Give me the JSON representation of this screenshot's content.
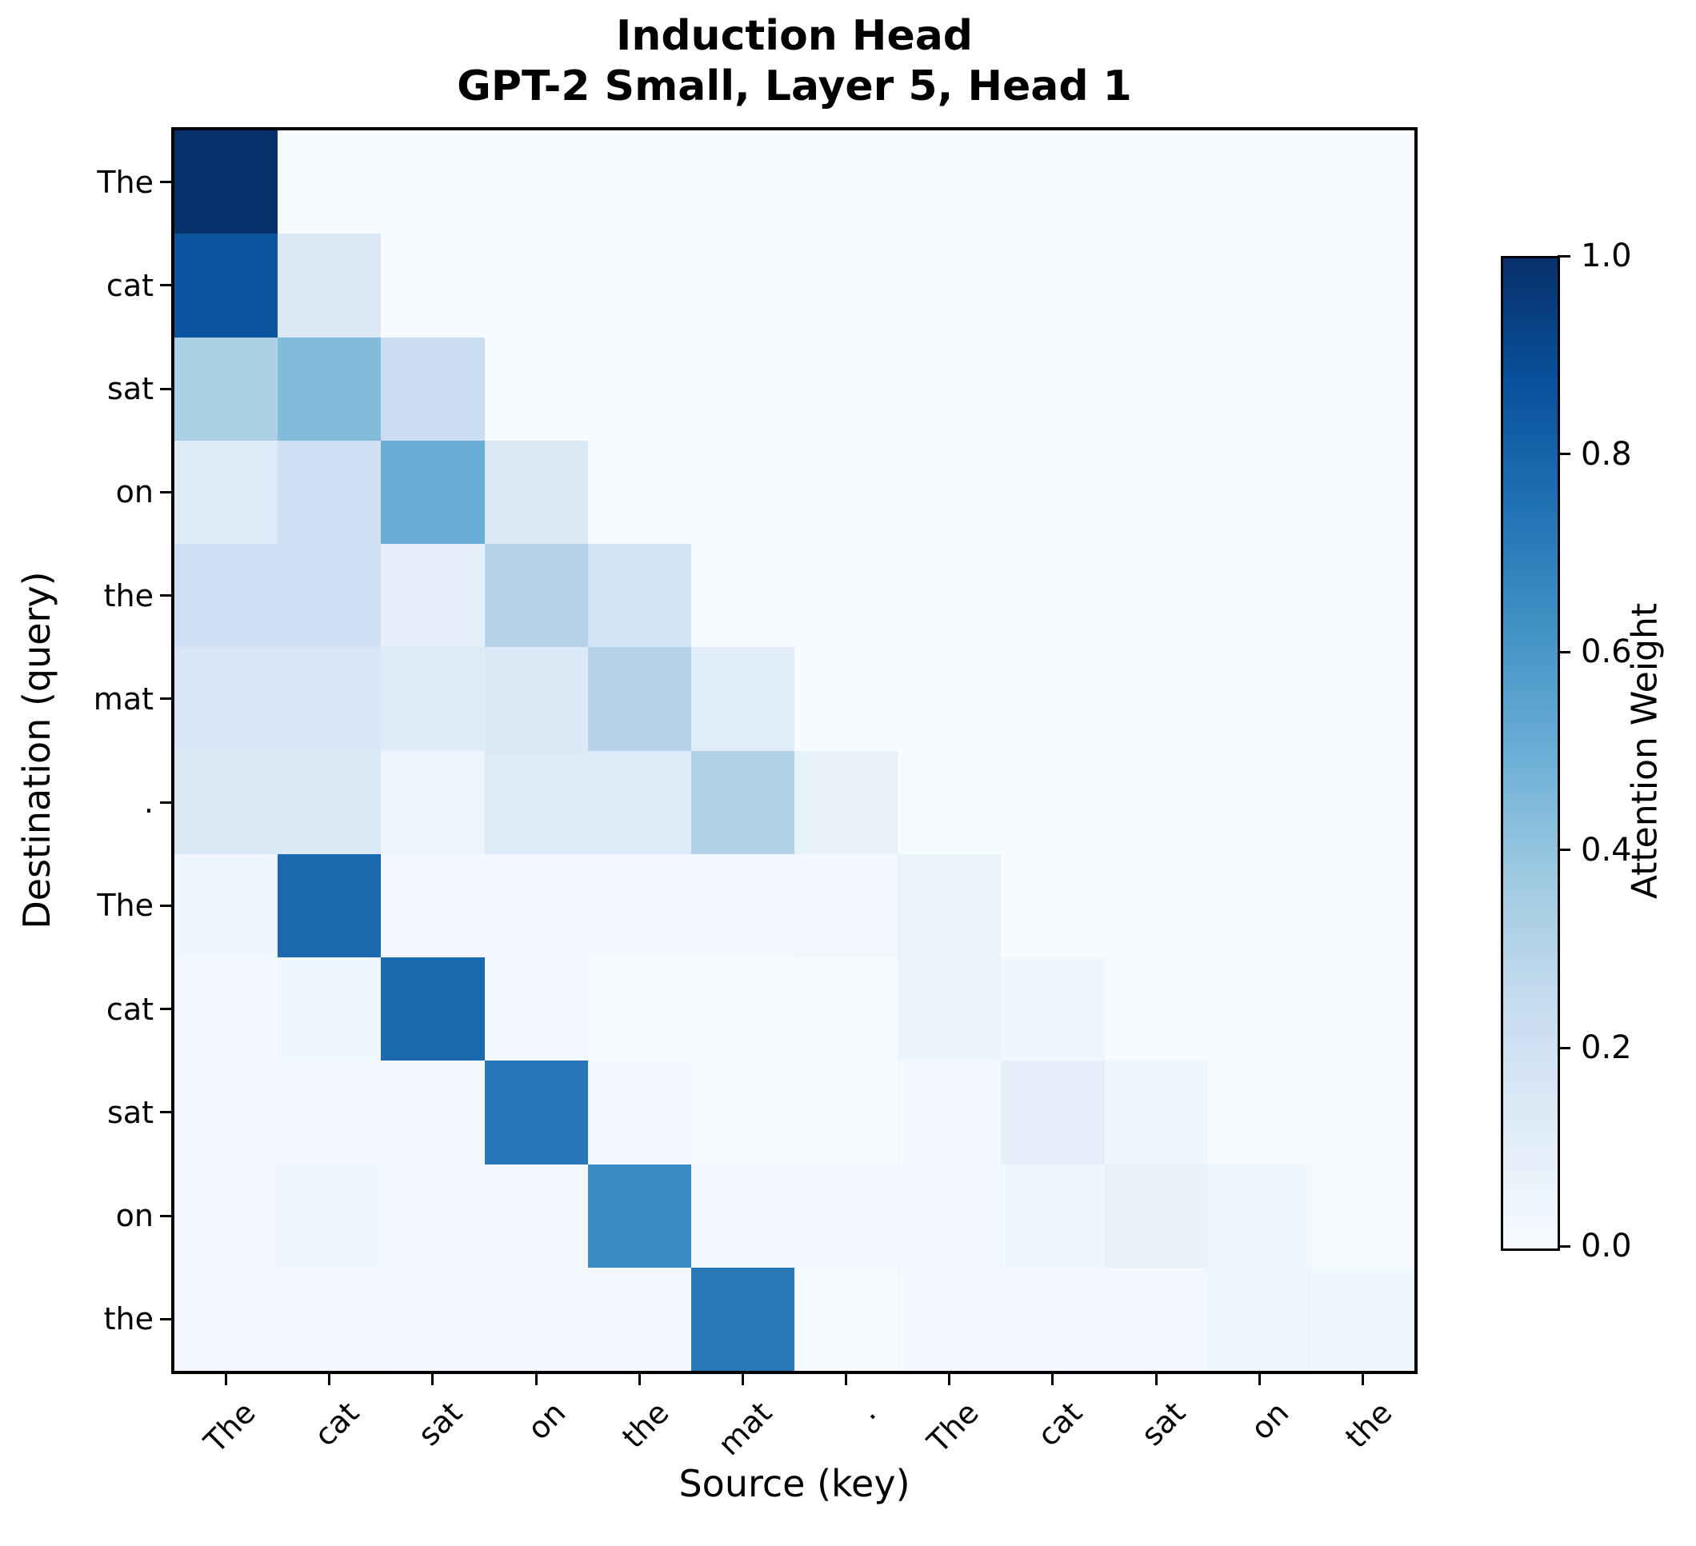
{
  "chart_data": {
    "type": "heatmap",
    "title": "Induction Head",
    "subtitle": "GPT-2 Small, Layer 5, Head 1",
    "xlabel": "Source (key)",
    "ylabel": "Destination (query)",
    "x_tokens": [
      "The",
      "cat",
      "sat",
      "on",
      "the",
      "mat",
      ".",
      "The",
      "cat",
      "sat",
      "on",
      "the"
    ],
    "y_tokens": [
      "The",
      "cat",
      "sat",
      "on",
      "the",
      "mat",
      ".",
      "The",
      "cat",
      "sat",
      "on",
      "the"
    ],
    "matrix": [
      [
        1.0,
        0,
        0,
        0,
        0,
        0,
        0,
        0,
        0,
        0,
        0,
        0
      ],
      [
        0.86,
        0.14,
        0,
        0,
        0,
        0,
        0,
        0,
        0,
        0,
        0,
        0
      ],
      [
        0.33,
        0.44,
        0.23,
        0,
        0,
        0,
        0,
        0,
        0,
        0,
        0,
        0
      ],
      [
        0.13,
        0.21,
        0.51,
        0.15,
        0,
        0,
        0,
        0,
        0,
        0,
        0,
        0
      ],
      [
        0.21,
        0.21,
        0.09,
        0.3,
        0.19,
        0,
        0,
        0,
        0,
        0,
        0,
        0
      ],
      [
        0.16,
        0.16,
        0.13,
        0.14,
        0.3,
        0.11,
        0,
        0,
        0,
        0,
        0,
        0
      ],
      [
        0.14,
        0.15,
        0.05,
        0.13,
        0.13,
        0.32,
        0.08,
        0,
        0,
        0,
        0,
        0
      ],
      [
        0.04,
        0.78,
        0.03,
        0.02,
        0.02,
        0.02,
        0.03,
        0.06,
        0,
        0,
        0,
        0
      ],
      [
        0.02,
        0.04,
        0.78,
        0.02,
        0.01,
        0.01,
        0.01,
        0.06,
        0.04,
        0,
        0,
        0
      ],
      [
        0.02,
        0.02,
        0.02,
        0.73,
        0.03,
        0.01,
        0.01,
        0.02,
        0.09,
        0.04,
        0,
        0
      ],
      [
        0.03,
        0.04,
        0.03,
        0.03,
        0.65,
        0.02,
        0.02,
        0.02,
        0.04,
        0.08,
        0.04,
        0
      ],
      [
        0.03,
        0.03,
        0.02,
        0.02,
        0.02,
        0.72,
        0.01,
        0.02,
        0.02,
        0.02,
        0.05,
        0.04
      ]
    ],
    "axis_ranges": {
      "vmin": 0.0,
      "vmax": 1.0
    },
    "grid": "off",
    "legend_position": "right-colorbar",
    "colorbar": {
      "label": "Attention Weight",
      "tick_labels": [
        "0.0",
        "0.2",
        "0.4",
        "0.6",
        "0.8",
        "1.0"
      ],
      "tick_values": [
        0.0,
        0.2,
        0.4,
        0.6,
        0.8,
        1.0
      ]
    },
    "colormap": {
      "name": "Blues",
      "stops": [
        "#f7fbff",
        "#deebf7",
        "#c6dbef",
        "#9ecae1",
        "#6baed6",
        "#4292c6",
        "#2171b5",
        "#08519c",
        "#08306b"
      ]
    }
  }
}
